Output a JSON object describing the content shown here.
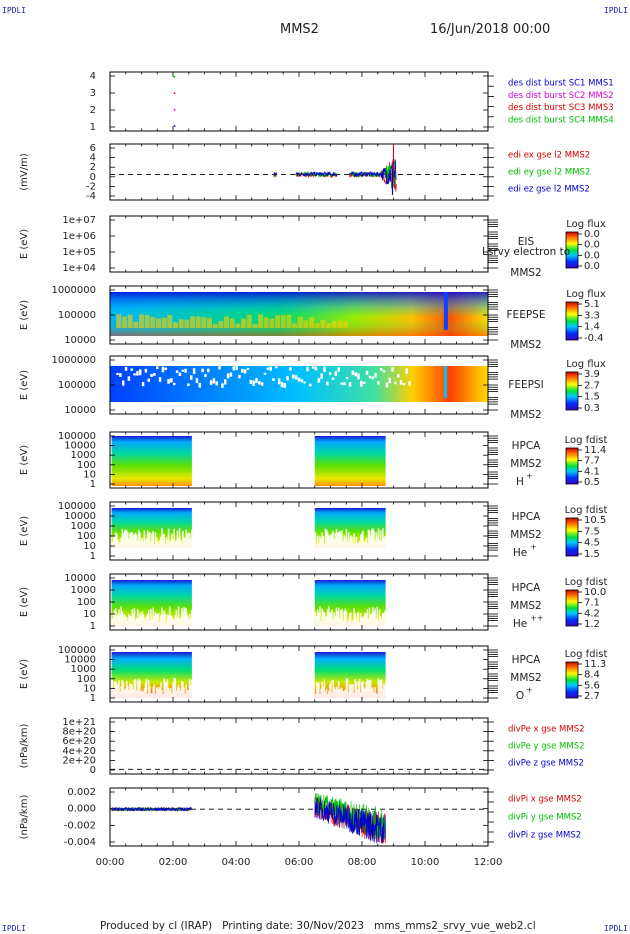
{
  "header": {
    "corner_tl": "IPDLI",
    "corner_tr": "IPDLI",
    "corner_bl": "IPDLI",
    "corner_br": "IPDLI",
    "title": "MMS2",
    "date": "16/Jun/2018 00:00"
  },
  "footer": {
    "producer": "Produced by cl (IRAP)",
    "printing": "Printing date: 30/Nov/2023",
    "script": "mms_mms2_srvy_vue_web2.cl"
  },
  "colors": {
    "mms1": "#0000cc",
    "mms2": "#d400d4",
    "mms3": "#d40000",
    "mms4": "#00c000",
    "x": "#d40000",
    "y": "#00c000",
    "z": "#0000cc"
  },
  "chart_data": {
    "type": "multi-panel time series",
    "time_axis": {
      "ticks": [
        "00:00",
        "02:00",
        "04:00",
        "06:00",
        "08:00",
        "10:00",
        "12:00"
      ],
      "range_hours": [
        0,
        12
      ]
    },
    "panels": [
      {
        "id": "burst",
        "type": "scatter",
        "ylabel": "",
        "yticks": [
          "4",
          "3",
          "2",
          "1"
        ],
        "ylim": [
          0.7,
          4.3
        ],
        "legend": [
          {
            "label": "des dist burst SC1 MMS1",
            "color_key": "mms1"
          },
          {
            "label": "des dist burst SC2 MMS2",
            "color_key": "mms2"
          },
          {
            "label": "des dist burst SC3 MMS3",
            "color_key": "mms3"
          },
          {
            "label": "des dist burst SC4 MMS4",
            "color_key": "mms4"
          }
        ],
        "points": [
          {
            "t": 2.05,
            "y": 1,
            "color_key": "mms1"
          },
          {
            "t": 2.05,
            "y": 2,
            "color_key": "mms2"
          },
          {
            "t": 2.05,
            "y": 3,
            "color_key": "mms3"
          },
          {
            "t": 2.05,
            "y": 4,
            "color_key": "mms4"
          }
        ]
      },
      {
        "id": "edi",
        "type": "line",
        "ylabel": "(mV/m)",
        "yticks": [
          "6",
          "4",
          "2",
          "0",
          "-2",
          "-4"
        ],
        "ylim": [
          -5,
          6
        ],
        "zero_line": true,
        "legend": [
          {
            "label": "edi ex gse l2 MMS2",
            "color_key": "x"
          },
          {
            "label": "edi ey gse l2 MMS2",
            "color_key": "y"
          },
          {
            "label": "edi ez gse l2 MMS2",
            "color_key": "z"
          }
        ],
        "activity_intervals_hours": [
          [
            5.2,
            5.3
          ],
          [
            5.9,
            7.2
          ],
          [
            7.6,
            9.1
          ]
        ],
        "peak_values": {
          "max": 6,
          "min": -4,
          "peak_time_hours": 9.0
        }
      },
      {
        "id": "eis",
        "type": "heatmap",
        "ylabel": "E (eV)",
        "yticks": [
          "1e+07",
          "1e+06",
          "1e+05",
          "1e+04"
        ],
        "instrument": [
          "EIS",
          "MMS2"
        ],
        "overlay_text": "Lsrvy electron to",
        "colorbar_title": "Log flux",
        "colorbar_ticks": [
          "0.0",
          "0.0",
          "0.0",
          "0.0"
        ],
        "data_present": false
      },
      {
        "id": "feepse",
        "type": "heatmap",
        "ylabel": "E (eV)",
        "yticks": [
          "1000000",
          "100000",
          "10000"
        ],
        "instrument": [
          "FEEPSE",
          "MMS2"
        ],
        "colorbar_title": "Log flux",
        "colorbar_ticks": [
          "5.1",
          "3.3",
          "1.4",
          "-0.4"
        ],
        "intervals_hours": [
          [
            0,
            12
          ]
        ]
      },
      {
        "id": "feepsi",
        "type": "heatmap",
        "ylabel": "E (eV)",
        "yticks": [
          "1000000",
          "100000",
          "10000"
        ],
        "instrument": [
          "FEEPSI",
          "MMS2"
        ],
        "colorbar_title": "Log flux",
        "colorbar_ticks": [
          "3.9",
          "2.7",
          "1.5",
          "0.3"
        ],
        "intervals_hours": [
          [
            0,
            12
          ]
        ]
      },
      {
        "id": "hpca_h",
        "type": "heatmap",
        "ylabel": "E (eV)",
        "yticks": [
          "100000",
          "10000",
          "1000",
          "100",
          "10",
          "1"
        ],
        "instrument": [
          "HPCA",
          "MMS2"
        ],
        "species": "H",
        "species_sup": "+",
        "colorbar_title": "Log fdist",
        "colorbar_ticks": [
          "11.4",
          "7.7",
          "4.1",
          "0.5"
        ],
        "intervals_hours": [
          [
            0.05,
            2.6
          ],
          [
            6.5,
            8.75
          ]
        ]
      },
      {
        "id": "hpca_he",
        "type": "heatmap",
        "ylabel": "E (eV)",
        "yticks": [
          "100000",
          "10000",
          "1000",
          "100",
          "10",
          "1"
        ],
        "instrument": [
          "HPCA",
          "MMS2"
        ],
        "species": "He",
        "species_sup": "+",
        "colorbar_title": "Log fdist",
        "colorbar_ticks": [
          "10.5",
          "7.5",
          "4.5",
          "1.5"
        ],
        "intervals_hours": [
          [
            0.05,
            2.6
          ],
          [
            6.5,
            8.75
          ]
        ]
      },
      {
        "id": "hpca_hepp",
        "type": "heatmap",
        "ylabel": "E (eV)",
        "yticks": [
          "10000",
          "1000",
          "100",
          "10",
          "1"
        ],
        "instrument": [
          "HPCA",
          "MMS2"
        ],
        "species": "He",
        "species_sup": "++",
        "colorbar_title": "Log fdist",
        "colorbar_ticks": [
          "10.0",
          "7.1",
          "4.2",
          "1.2"
        ],
        "intervals_hours": [
          [
            0.05,
            2.6
          ],
          [
            6.5,
            8.75
          ]
        ]
      },
      {
        "id": "hpca_o",
        "type": "heatmap",
        "ylabel": "E (eV)",
        "yticks": [
          "100000",
          "10000",
          "1000",
          "100",
          "10",
          "1"
        ],
        "instrument": [
          "HPCA",
          "MMS2"
        ],
        "species": "O",
        "species_sup": "+",
        "colorbar_title": "Log fdist",
        "colorbar_ticks": [
          "11.3",
          "8.4",
          "5.6",
          "2.7"
        ],
        "intervals_hours": [
          [
            0.05,
            2.6
          ],
          [
            6.5,
            8.75
          ]
        ]
      },
      {
        "id": "divpe",
        "type": "line",
        "ylabel": "(nPa/km)",
        "yticks": [
          "1e+21",
          "8e+20",
          "6e+20",
          "4e+20",
          "2e+20",
          "0"
        ],
        "ylim": [
          -1e+20,
          1.1e+21
        ],
        "zero_line": true,
        "legend": [
          {
            "label": "divPe x gse MMS2",
            "color_key": "x"
          },
          {
            "label": "divPe y gse MMS2",
            "color_key": "y"
          },
          {
            "label": "divPe z gse MMS2",
            "color_key": "z"
          }
        ]
      },
      {
        "id": "divpi",
        "type": "line",
        "ylabel": "(nPa/km)",
        "yticks": [
          "0.002",
          "0.000",
          "-0.002",
          "-0.004"
        ],
        "ylim": [
          -0.0052,
          0.003
        ],
        "zero_line": true,
        "legend": [
          {
            "label": "divPi x gse MMS2",
            "color_key": "x"
          },
          {
            "label": "divPi y gse MMS2",
            "color_key": "y"
          },
          {
            "label": "divPi z gse MMS2",
            "color_key": "z"
          }
        ],
        "activity_intervals_hours": [
          [
            0.05,
            2.6
          ],
          [
            6.5,
            8.75
          ]
        ],
        "peak_values": {
          "max": 0.0025,
          "min": -0.0048
        }
      }
    ]
  }
}
